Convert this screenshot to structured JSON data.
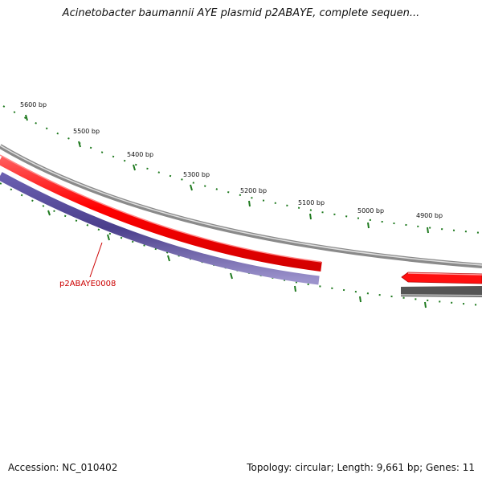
{
  "title": "Acinetobacter baumannii AYE plasmid p2ABAYE, complete sequen...",
  "footer": {
    "accession": "Accession: NC_010402",
    "summary": "Topology: circular; Length: 9,661 bp; Genes: 11"
  },
  "map": {
    "ticks": [
      {
        "label": "5600 bp"
      },
      {
        "label": "5500 bp"
      },
      {
        "label": "5400 bp"
      },
      {
        "label": "5300 bp"
      },
      {
        "label": "5200 bp"
      },
      {
        "label": "5100 bp"
      },
      {
        "label": "5000 bp"
      },
      {
        "label": "4900 bp"
      }
    ],
    "genes": [
      {
        "label": "p2ABAYE0008",
        "color": "#cc0000"
      }
    ],
    "colors": {
      "forward_feature": "#ff0000",
      "reverse_feature": "#4b3f8c",
      "backbone": "#8a8a8a",
      "orf": "#555555",
      "ticks": "#1f7a1f",
      "gene_label": "#cc0000"
    }
  }
}
